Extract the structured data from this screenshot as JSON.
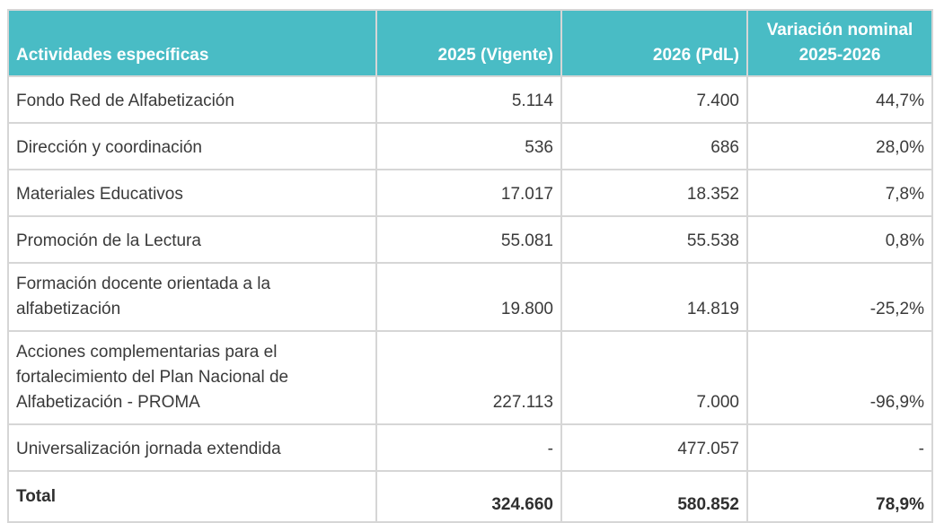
{
  "header": {
    "col1": "Actividades específicas",
    "col2": "2025 (Vigente)",
    "col3": "2026 (PdL)",
    "col4_line1": "Variación nominal",
    "col4_line2": "2025-2026"
  },
  "rows": [
    {
      "label": "Fondo Red de Alfabetización",
      "v2025": "5.114",
      "v2026": "7.400",
      "var": "44,7%"
    },
    {
      "label": "Dirección y coordinación",
      "v2025": "536",
      "v2026": "686",
      "var": "28,0%"
    },
    {
      "label": "Materiales Educativos",
      "v2025": "17.017",
      "v2026": "18.352",
      "var": "7,8%"
    },
    {
      "label": "Promoción de la Lectura",
      "v2025": "55.081",
      "v2026": "55.538",
      "var": "0,8%"
    },
    {
      "label_line1": "Formación docente orientada a la",
      "label_line2": "alfabetización",
      "v2025": "19.800",
      "v2026": "14.819",
      "var": "-25,2%"
    },
    {
      "label_line1": "Acciones complementarias para el",
      "label_line2": "fortalecimiento del Plan Nacional de",
      "label_line3": "Alfabetización - PROMA",
      "v2025": "227.113",
      "v2026": "7.000",
      "var": "-96,9%"
    },
    {
      "label": "Universalización jornada extendida",
      "v2025": "-",
      "v2026": "477.057",
      "var": "-"
    }
  ],
  "total": {
    "label": "Total",
    "v2025": "324.660",
    "v2026": "580.852",
    "var": "78,9%"
  },
  "colors": {
    "header_bg": "#49bcc5",
    "header_text": "#ffffff",
    "border": "#d6d6d6"
  }
}
